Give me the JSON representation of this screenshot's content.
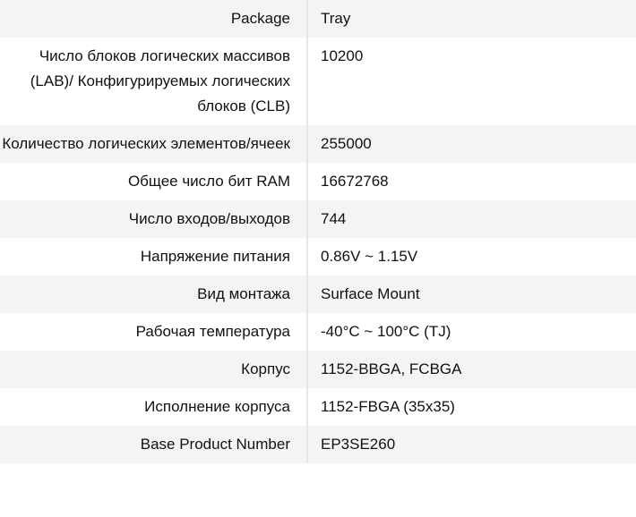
{
  "specs": [
    {
      "label": "Package",
      "value": "Tray"
    },
    {
      "label": "Число блоков логических массивов (LAB)/ Конфигурируемых логических блоков (CLB)",
      "value": "10200"
    },
    {
      "label": "Количество логических элементов/ячеек",
      "value": "255000"
    },
    {
      "label": "Общее число бит RAM",
      "value": "16672768"
    },
    {
      "label": "Число входов/выходов",
      "value": "744"
    },
    {
      "label": "Напряжение питания",
      "value": "0.86V ~ 1.15V"
    },
    {
      "label": "Вид монтажа",
      "value": "Surface Mount"
    },
    {
      "label": "Рабочая температура",
      "value": "-40°C ~ 100°C (TJ)"
    },
    {
      "label": "Корпус",
      "value": "1152-BBGA, FCBGA"
    },
    {
      "label": "Исполнение корпуса",
      "value": "1152-FBGA (35x35)"
    },
    {
      "label": "Base Product Number",
      "value": "EP3SE260"
    }
  ]
}
